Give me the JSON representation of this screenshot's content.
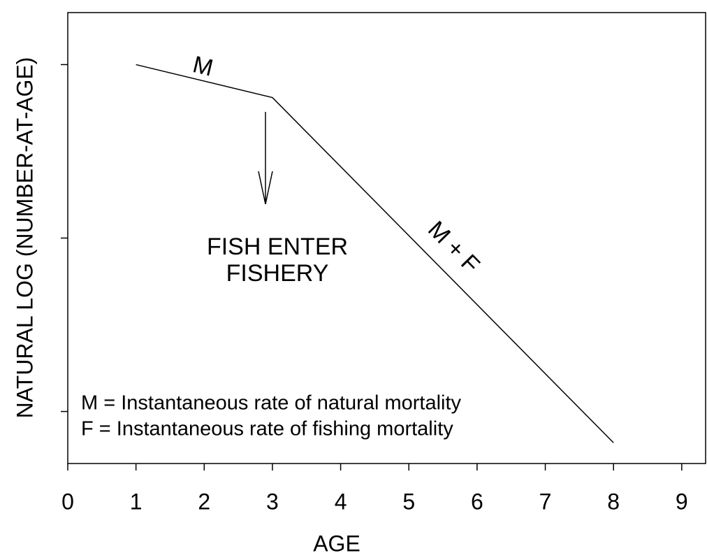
{
  "chart_data": {
    "type": "line",
    "xlabel": "AGE",
    "ylabel": "NATURAL LOG (NUMBER-AT-AGE)",
    "x": [
      1,
      3,
      8
    ],
    "series": [
      {
        "color": "#000000",
        "values": [
          3.0,
          2.81,
          0.82
        ]
      }
    ],
    "xlim": [
      0,
      9.35
    ],
    "xticks": [
      0,
      1,
      2,
      3,
      4,
      5,
      6,
      7,
      8,
      9
    ],
    "ylim": [
      0.7,
      3.3
    ],
    "yticks": [
      1,
      2,
      3
    ],
    "ytick_labels": false,
    "grid": false,
    "annotations": [
      "M",
      "M + F",
      "FISH ENTER",
      "FISHERY",
      "M = Instantaneous rate of natural mortality",
      "F = Instantaneous rate of fishing mortality"
    ]
  }
}
